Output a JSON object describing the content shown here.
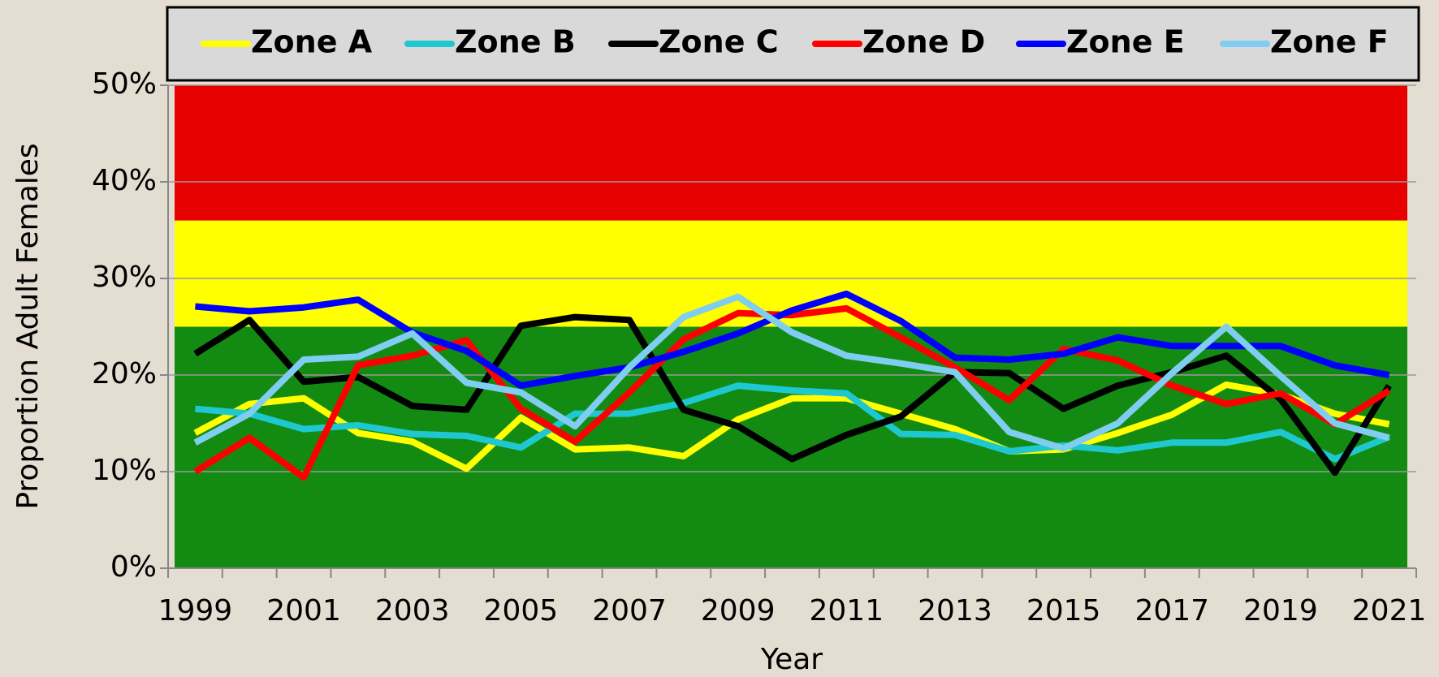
{
  "chart_data": {
    "type": "line",
    "y_label": "Proportion Adult Females",
    "x_label": "Year",
    "categories": [
      "1999",
      null,
      "2001",
      null,
      "2003",
      null,
      "2005",
      null,
      "2007",
      null,
      "2009",
      null,
      "2011",
      null,
      "2013",
      null,
      "2015",
      null,
      "2017",
      null,
      "2019",
      null,
      "2021"
    ],
    "ylim": [
      0,
      50
    ],
    "yticks": [
      {
        "value": 0,
        "label": "0%"
      },
      {
        "value": 10,
        "label": "10%"
      },
      {
        "value": 20,
        "label": "20%"
      },
      {
        "value": 30,
        "label": "30%"
      },
      {
        "value": 40,
        "label": "40%"
      },
      {
        "value": 50,
        "label": "50%"
      }
    ],
    "grid": true,
    "legend": "top",
    "bands": [
      {
        "from": 0,
        "to": 25,
        "color": "#138a12"
      },
      {
        "from": 25,
        "to": 36,
        "color": "#ffff00"
      },
      {
        "from": 36,
        "to": 50,
        "color": "#e60000"
      }
    ],
    "series": [
      {
        "name": "Zone A",
        "color": "#ffff00",
        "values": [
          14,
          17,
          17.6,
          14,
          13.1,
          10.3,
          15.6,
          12.3,
          12.5,
          11.6,
          15.4,
          17.6,
          17.6,
          16,
          14.4,
          12.1,
          12.3,
          14,
          15.9,
          19,
          18,
          16,
          14.9
        ]
      },
      {
        "name": "Zone B",
        "color": "#1fc8d0",
        "values": [
          16.5,
          16,
          14.4,
          14.8,
          13.9,
          13.7,
          12.5,
          16,
          16,
          17.1,
          18.9,
          18.4,
          18.1,
          13.9,
          13.8,
          12.1,
          12.7,
          12.2,
          13,
          13,
          14.1,
          11.3,
          13.6
        ]
      },
      {
        "name": "Zone C",
        "color": "#000000",
        "values": [
          22.2,
          25.7,
          19.3,
          19.8,
          16.8,
          16.4,
          25.1,
          26,
          25.7,
          16.4,
          14.7,
          11.3,
          13.8,
          15.7,
          20.3,
          20.2,
          16.5,
          18.9,
          20.3,
          22,
          17.5,
          9.9,
          18.9
        ]
      },
      {
        "name": "Zone D",
        "color": "#ff0000",
        "values": [
          10,
          13.5,
          9.4,
          21,
          22,
          23.6,
          16.5,
          13.1,
          18.2,
          23.7,
          26.4,
          26.2,
          26.9,
          23.9,
          20.8,
          17.4,
          22.7,
          21.5,
          18.9,
          17,
          18.1,
          14.9,
          18.4
        ]
      },
      {
        "name": "Zone E",
        "color": "#0000ff",
        "values": [
          27.1,
          26.6,
          27,
          27.8,
          24.4,
          22.5,
          18.9,
          19.9,
          20.8,
          22.4,
          24.3,
          26.7,
          28.4,
          25.6,
          21.8,
          21.6,
          22.2,
          23.9,
          23,
          23,
          23,
          21,
          20
        ]
      },
      {
        "name": "Zone F",
        "color": "#7fcdf0",
        "values": [
          13,
          16,
          21.6,
          21.9,
          24.3,
          19.2,
          18.2,
          14.7,
          20.8,
          26,
          28.1,
          24.4,
          22,
          21.2,
          20.3,
          14.1,
          12.4,
          15,
          20.2,
          25,
          19.9,
          15,
          13.5
        ]
      }
    ]
  }
}
